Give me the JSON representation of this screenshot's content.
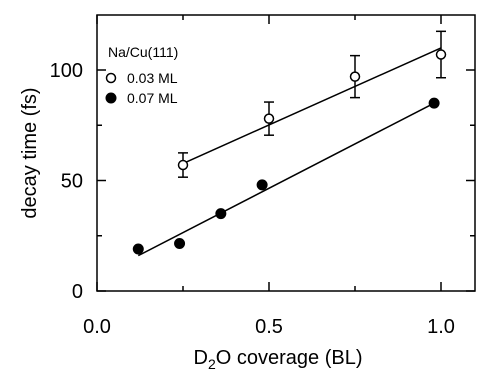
{
  "chart_data": {
    "type": "scatter",
    "legend_title": "Na/Cu(111)",
    "legend_position": "top-left",
    "xlabel": {
      "pre": "D",
      "sub": "2",
      "post": "O coverage (BL)"
    },
    "ylabel": "decay time (fs)",
    "xlim": [
      0.0,
      1.1
    ],
    "ylim": [
      0,
      120
    ],
    "x_ticks": [
      {
        "value": 0.0,
        "label": "0.0"
      },
      {
        "value": 0.5,
        "label": "0.5"
      },
      {
        "value": 1.0,
        "label": "1.0"
      }
    ],
    "y_ticks": [
      {
        "value": 0,
        "label": "0"
      },
      {
        "value": 50,
        "label": "50"
      },
      {
        "value": 100,
        "label": "100"
      }
    ],
    "x_minor_ticks": [
      0.25,
      0.75
    ],
    "y_minor_ticks": [
      25,
      75
    ],
    "series": [
      {
        "name": "0.03 ML",
        "marker": "open-circle",
        "x": [
          0.25,
          0.5,
          0.75,
          1.0
        ],
        "y": [
          57,
          78,
          97,
          107
        ],
        "yerr": [
          5.5,
          7.5,
          9.5,
          10.5
        ],
        "fit": {
          "x": [
            0.24,
            1.0
          ],
          "y": [
            57,
            110
          ]
        }
      },
      {
        "name": "0.07 ML",
        "marker": "filled-circle",
        "x": [
          0.12,
          0.24,
          0.36,
          0.48,
          0.98
        ],
        "y": [
          19,
          21.5,
          35,
          48,
          85
        ],
        "fit": {
          "x": [
            0.12,
            0.98
          ],
          "y": [
            16,
            85
          ]
        }
      }
    ]
  }
}
